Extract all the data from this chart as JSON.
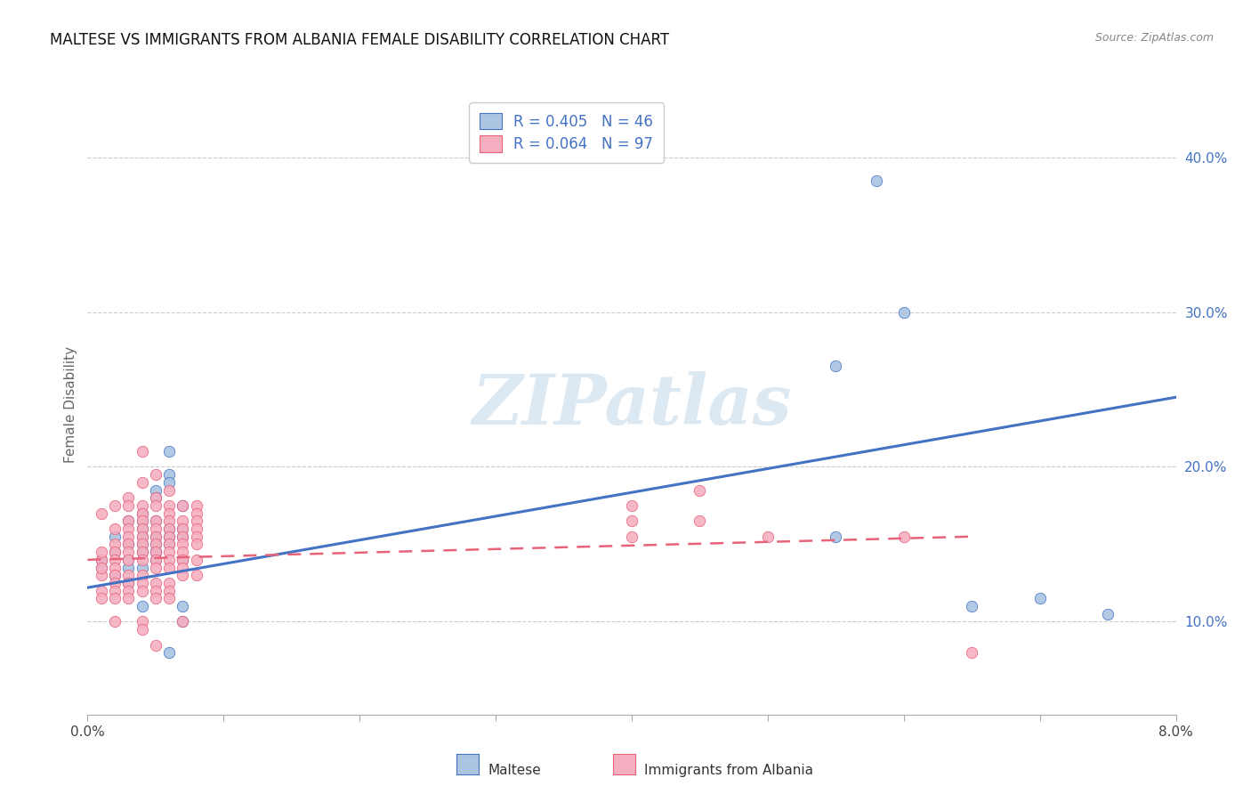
{
  "title": "MALTESE VS IMMIGRANTS FROM ALBANIA FEMALE DISABILITY CORRELATION CHART",
  "source": "Source: ZipAtlas.com",
  "ylabel": "Female Disability",
  "right_yticks": [
    "10.0%",
    "20.0%",
    "30.0%",
    "40.0%"
  ],
  "right_ytick_vals": [
    0.1,
    0.2,
    0.3,
    0.4
  ],
  "xmin": 0.0,
  "xmax": 0.08,
  "ymin": 0.04,
  "ymax": 0.44,
  "maltese_color": "#aac4e2",
  "albania_color": "#f5afc0",
  "maltese_line_color": "#4472c4",
  "albania_line_color": "#e8637a",
  "watermark": "ZIPatlas",
  "maltese_label": "Maltese",
  "albania_label": "Immigrants from Albania",
  "maltese_scatter": [
    [
      0.001,
      0.135
    ],
    [
      0.001,
      0.14
    ],
    [
      0.002,
      0.13
    ],
    [
      0.002,
      0.155
    ],
    [
      0.002,
      0.145
    ],
    [
      0.003,
      0.15
    ],
    [
      0.003,
      0.14
    ],
    [
      0.003,
      0.135
    ],
    [
      0.003,
      0.125
    ],
    [
      0.003,
      0.165
    ],
    [
      0.004,
      0.17
    ],
    [
      0.004,
      0.155
    ],
    [
      0.004,
      0.165
    ],
    [
      0.004,
      0.16
    ],
    [
      0.004,
      0.15
    ],
    [
      0.004,
      0.145
    ],
    [
      0.004,
      0.135
    ],
    [
      0.004,
      0.11
    ],
    [
      0.005,
      0.185
    ],
    [
      0.005,
      0.18
    ],
    [
      0.005,
      0.165
    ],
    [
      0.005,
      0.155
    ],
    [
      0.005,
      0.15
    ],
    [
      0.005,
      0.145
    ],
    [
      0.005,
      0.14
    ],
    [
      0.005,
      0.145
    ],
    [
      0.006,
      0.21
    ],
    [
      0.006,
      0.195
    ],
    [
      0.006,
      0.19
    ],
    [
      0.006,
      0.16
    ],
    [
      0.006,
      0.155
    ],
    [
      0.006,
      0.15
    ],
    [
      0.006,
      0.08
    ],
    [
      0.007,
      0.175
    ],
    [
      0.007,
      0.16
    ],
    [
      0.007,
      0.155
    ],
    [
      0.007,
      0.14
    ],
    [
      0.007,
      0.1
    ],
    [
      0.007,
      0.11
    ],
    [
      0.055,
      0.265
    ],
    [
      0.055,
      0.155
    ],
    [
      0.058,
      0.385
    ],
    [
      0.06,
      0.3
    ],
    [
      0.065,
      0.11
    ],
    [
      0.07,
      0.115
    ],
    [
      0.075,
      0.105
    ]
  ],
  "albania_scatter": [
    [
      0.001,
      0.17
    ],
    [
      0.001,
      0.14
    ],
    [
      0.001,
      0.13
    ],
    [
      0.001,
      0.12
    ],
    [
      0.001,
      0.115
    ],
    [
      0.001,
      0.145
    ],
    [
      0.001,
      0.135
    ],
    [
      0.002,
      0.175
    ],
    [
      0.002,
      0.16
    ],
    [
      0.002,
      0.15
    ],
    [
      0.002,
      0.145
    ],
    [
      0.002,
      0.14
    ],
    [
      0.002,
      0.135
    ],
    [
      0.002,
      0.13
    ],
    [
      0.002,
      0.125
    ],
    [
      0.002,
      0.12
    ],
    [
      0.002,
      0.115
    ],
    [
      0.002,
      0.1
    ],
    [
      0.003,
      0.18
    ],
    [
      0.003,
      0.175
    ],
    [
      0.003,
      0.165
    ],
    [
      0.003,
      0.16
    ],
    [
      0.003,
      0.155
    ],
    [
      0.003,
      0.15
    ],
    [
      0.003,
      0.145
    ],
    [
      0.003,
      0.14
    ],
    [
      0.003,
      0.13
    ],
    [
      0.003,
      0.125
    ],
    [
      0.003,
      0.12
    ],
    [
      0.003,
      0.115
    ],
    [
      0.004,
      0.21
    ],
    [
      0.004,
      0.19
    ],
    [
      0.004,
      0.175
    ],
    [
      0.004,
      0.17
    ],
    [
      0.004,
      0.165
    ],
    [
      0.004,
      0.16
    ],
    [
      0.004,
      0.155
    ],
    [
      0.004,
      0.15
    ],
    [
      0.004,
      0.145
    ],
    [
      0.004,
      0.14
    ],
    [
      0.004,
      0.13
    ],
    [
      0.004,
      0.125
    ],
    [
      0.004,
      0.12
    ],
    [
      0.004,
      0.1
    ],
    [
      0.004,
      0.095
    ],
    [
      0.005,
      0.195
    ],
    [
      0.005,
      0.18
    ],
    [
      0.005,
      0.175
    ],
    [
      0.005,
      0.165
    ],
    [
      0.005,
      0.16
    ],
    [
      0.005,
      0.155
    ],
    [
      0.005,
      0.15
    ],
    [
      0.005,
      0.145
    ],
    [
      0.005,
      0.14
    ],
    [
      0.005,
      0.135
    ],
    [
      0.005,
      0.125
    ],
    [
      0.005,
      0.12
    ],
    [
      0.005,
      0.115
    ],
    [
      0.005,
      0.085
    ],
    [
      0.006,
      0.185
    ],
    [
      0.006,
      0.175
    ],
    [
      0.006,
      0.17
    ],
    [
      0.006,
      0.165
    ],
    [
      0.006,
      0.16
    ],
    [
      0.006,
      0.155
    ],
    [
      0.006,
      0.15
    ],
    [
      0.006,
      0.145
    ],
    [
      0.006,
      0.14
    ],
    [
      0.006,
      0.135
    ],
    [
      0.006,
      0.125
    ],
    [
      0.006,
      0.12
    ],
    [
      0.006,
      0.115
    ],
    [
      0.007,
      0.175
    ],
    [
      0.007,
      0.165
    ],
    [
      0.007,
      0.16
    ],
    [
      0.007,
      0.155
    ],
    [
      0.007,
      0.15
    ],
    [
      0.007,
      0.145
    ],
    [
      0.007,
      0.14
    ],
    [
      0.007,
      0.135
    ],
    [
      0.007,
      0.13
    ],
    [
      0.007,
      0.1
    ],
    [
      0.008,
      0.175
    ],
    [
      0.008,
      0.17
    ],
    [
      0.008,
      0.165
    ],
    [
      0.008,
      0.16
    ],
    [
      0.008,
      0.155
    ],
    [
      0.008,
      0.15
    ],
    [
      0.008,
      0.14
    ],
    [
      0.008,
      0.13
    ],
    [
      0.04,
      0.175
    ],
    [
      0.04,
      0.165
    ],
    [
      0.04,
      0.155
    ],
    [
      0.045,
      0.185
    ],
    [
      0.045,
      0.165
    ],
    [
      0.05,
      0.155
    ],
    [
      0.06,
      0.155
    ],
    [
      0.065,
      0.08
    ]
  ],
  "maltese_line_x": [
    0.0,
    0.08
  ],
  "maltese_line_y": [
    0.122,
    0.245
  ],
  "albania_line_x": [
    0.0,
    0.065
  ],
  "albania_line_y": [
    0.14,
    0.155
  ]
}
